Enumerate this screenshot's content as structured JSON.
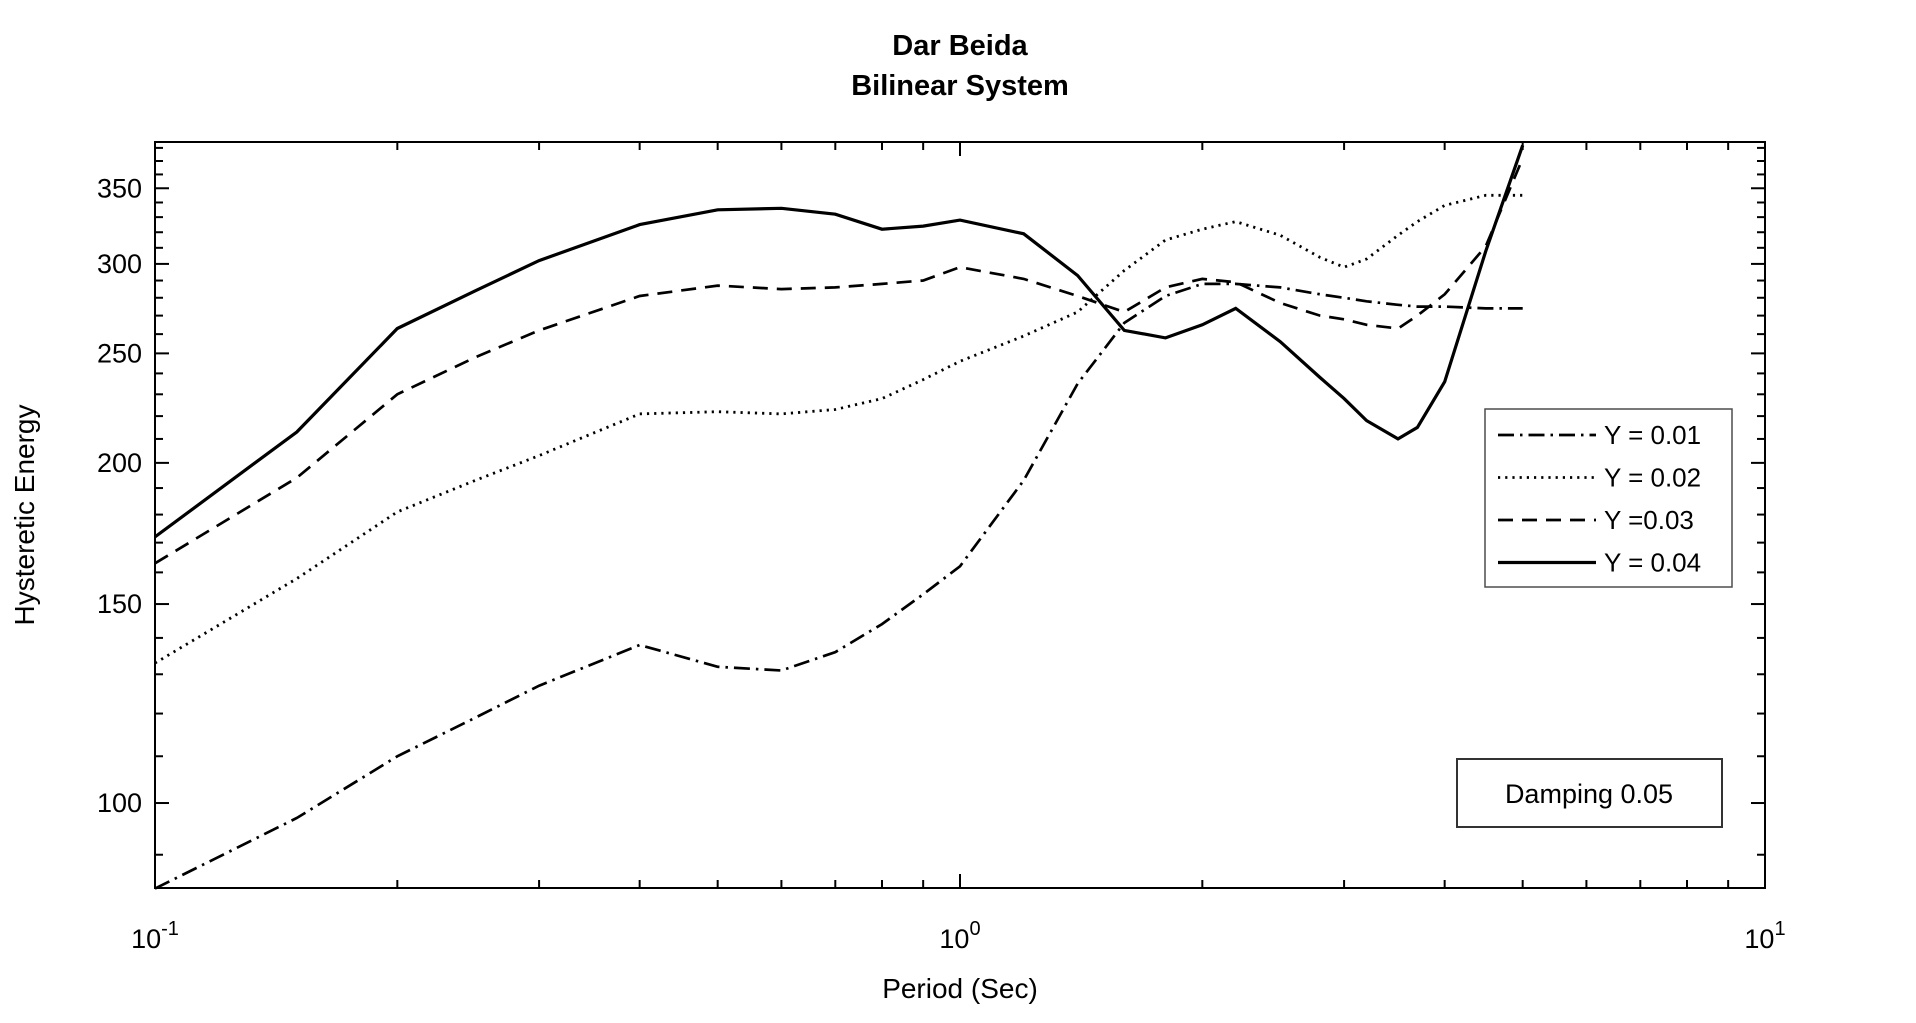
{
  "figure": {
    "background": "#ffffff",
    "line_color": "#000000"
  },
  "annotation": {
    "text": "Damping 0.05"
  },
  "legend": {
    "position": "right-middle",
    "entries": [
      {
        "label": "Y = 0.01",
        "style": "dashdot"
      },
      {
        "label": "Y = 0.02",
        "style": "dotted"
      },
      {
        "label": "Y =0.03",
        "style": "dashed"
      },
      {
        "label": "Y = 0.04",
        "style": "solid"
      }
    ]
  },
  "chart_data": {
    "type": "line",
    "title": "Dar Beida",
    "subtitle": "Bilinear System",
    "xlabel": "Period (Sec)",
    "ylabel": "Hysteretic Energy",
    "x_scale": "log",
    "y_scale": "log",
    "xlim": [
      0.1,
      10
    ],
    "ylim": [
      84.1,
      384.6
    ],
    "grid": false,
    "x": [
      0.1,
      0.15,
      0.2,
      0.25,
      0.3,
      0.4,
      0.5,
      0.6,
      0.7,
      0.8,
      0.9,
      1.0,
      1.2,
      1.4,
      1.6,
      1.8,
      2.0,
      2.2,
      2.5,
      2.8,
      3.0,
      3.2,
      3.5,
      3.7,
      4.0,
      4.5,
      5.0
    ],
    "series": [
      {
        "name": "Y = 0.01",
        "style": "dashdot",
        "values": [
          84,
          97,
          110,
          119,
          127,
          138,
          132,
          131,
          136,
          144,
          153,
          162,
          193,
          235,
          266,
          281,
          288,
          288,
          286,
          282,
          280,
          278,
          276,
          275,
          275,
          274,
          274
        ]
      },
      {
        "name": "Y = 0.02",
        "style": "dotted",
        "values": [
          133,
          158,
          181,
          193,
          203,
          221,
          222,
          221,
          223,
          228,
          237,
          246,
          259,
          272,
          296,
          315,
          322,
          327,
          318,
          304,
          298,
          303,
          318,
          327,
          338,
          345,
          345
        ]
      },
      {
        "name": "Y =0.03",
        "style": "dashed",
        "values": [
          163,
          194,
          230,
          248,
          262,
          281,
          287,
          285,
          286,
          288,
          290,
          298,
          291,
          281,
          272,
          286,
          291,
          289,
          277,
          270,
          268,
          265,
          263,
          270,
          282,
          311,
          372
        ]
      },
      {
        "name": "Y = 0.04",
        "style": "solid",
        "values": [
          172,
          213,
          263,
          284,
          302,
          325,
          335,
          336,
          332,
          322,
          324,
          328,
          319,
          293,
          262,
          258,
          265,
          274,
          256,
          238,
          228,
          218,
          210,
          215,
          236,
          308,
          382
        ]
      }
    ],
    "y_major_ticks": [
      100,
      150,
      200,
      250,
      300,
      350
    ],
    "y_minor_ticks": [
      90,
      110,
      120,
      130,
      140,
      160,
      170,
      180,
      190,
      210,
      220,
      230,
      240,
      260,
      270,
      280,
      290,
      310,
      320,
      330,
      340,
      360,
      370,
      380
    ],
    "x_major_ticks": [
      {
        "value": 0.1,
        "base": "10",
        "exp": "-1"
      },
      {
        "value": 1,
        "base": "10",
        "exp": "0"
      },
      {
        "value": 10,
        "base": "10",
        "exp": "1"
      }
    ],
    "x_minor_ticks": [
      0.2,
      0.3,
      0.4,
      0.5,
      0.6,
      0.7,
      0.8,
      0.9,
      2,
      3,
      4,
      5,
      6,
      7,
      8,
      9
    ]
  }
}
